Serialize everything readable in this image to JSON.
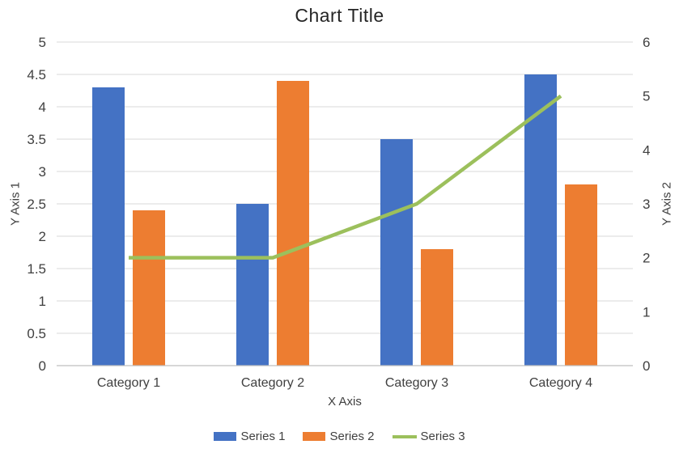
{
  "chart_data": {
    "type": "combo-bar-line",
    "title": "Chart Title",
    "x_axis": {
      "label": "X Axis",
      "categories": [
        "Category 1",
        "Category 2",
        "Category 3",
        "Category 4"
      ]
    },
    "y_axis_left": {
      "label": "Y Axis 1",
      "min": 0,
      "max": 5,
      "step": 0.5,
      "ticks": [
        "0",
        "0.5",
        "1",
        "1.5",
        "2",
        "2.5",
        "3",
        "3.5",
        "4",
        "4.5",
        "5"
      ]
    },
    "y_axis_right": {
      "label": "Y Axis 2",
      "min": 0,
      "max": 6,
      "step": 1,
      "ticks": [
        "0",
        "1",
        "2",
        "3",
        "4",
        "5",
        "6"
      ]
    },
    "series": [
      {
        "name": "Series 1",
        "type": "bar",
        "axis": "left",
        "color": "#4472C4",
        "values": [
          4.3,
          2.5,
          3.5,
          4.5
        ]
      },
      {
        "name": "Series 2",
        "type": "bar",
        "axis": "left",
        "color": "#ED7D31",
        "values": [
          2.4,
          4.4,
          1.8,
          2.8
        ]
      },
      {
        "name": "Series 3",
        "type": "line",
        "axis": "right",
        "color": "#9CC05C",
        "values": [
          2,
          2,
          3,
          5
        ]
      }
    ],
    "legend_position": "bottom",
    "grid": true,
    "colors": {
      "gridline": "#D9D9D9",
      "axis_line": "#BFBFBF",
      "text": "#404040",
      "title_text": "#262626",
      "background": "#FFFFFF"
    }
  }
}
